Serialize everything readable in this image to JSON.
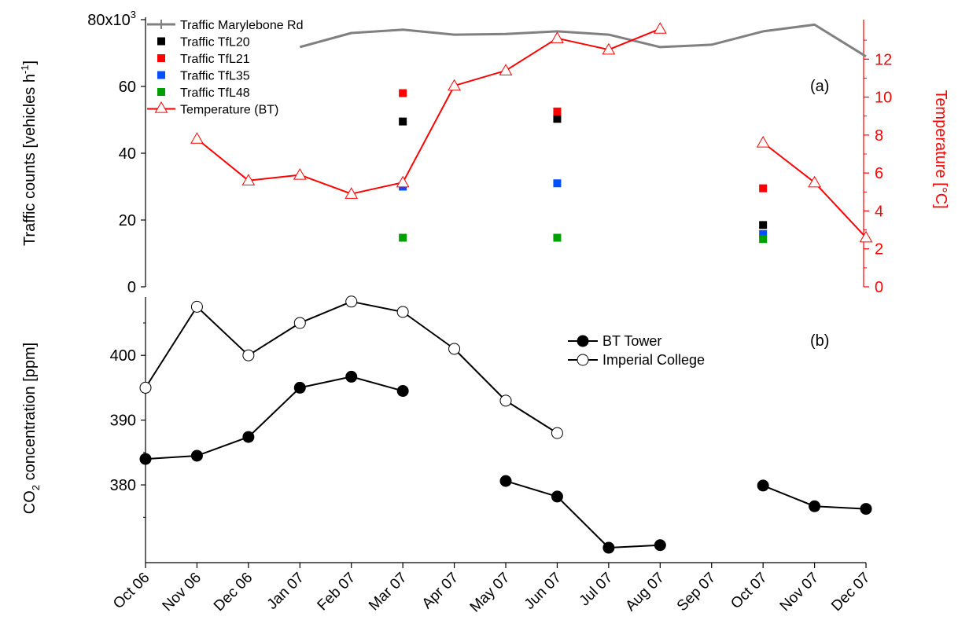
{
  "chart_data": [
    {
      "panel_label": "(a)",
      "type": "line",
      "x": [
        "Oct 06",
        "Nov 06",
        "Dec 06",
        "Jan 07",
        "Feb 07",
        "Mar 07",
        "Apr 07",
        "May 07",
        "Jun 07",
        "Jul 07",
        "Aug 07",
        "Sep 07",
        "Oct 07",
        "Nov 07",
        "Dec 07"
      ],
      "ylabel": "Traffic counts [vehicles h",
      "ylabel_sup": "-1",
      "ylabel_close": "]",
      "ylim": [
        0,
        80000
      ],
      "yticks": [
        {
          "value": 0,
          "label": "0"
        },
        {
          "value": 20000,
          "label": "20"
        },
        {
          "value": 40000,
          "label": "40"
        },
        {
          "value": 60000,
          "label": "60"
        },
        {
          "value": 80000,
          "label": "80x10",
          "sup": "3"
        }
      ],
      "y2label": "Temperature [°C]",
      "y2lim": [
        0,
        14
      ],
      "y2ticks": [
        {
          "value": 0,
          "label": "0"
        },
        {
          "value": 2,
          "label": "2"
        },
        {
          "value": 4,
          "label": "4"
        },
        {
          "value": 6,
          "label": "6"
        },
        {
          "value": 8,
          "label": "8"
        },
        {
          "value": 10,
          "label": "10"
        },
        {
          "value": 12,
          "label": "12"
        }
      ],
      "legend_position": "top-left",
      "series": [
        {
          "name": "Traffic Marylebone Rd",
          "kind": "line",
          "axis": "left",
          "color": "#808080",
          "values": [
            null,
            null,
            null,
            71800,
            76000,
            77000,
            75500,
            75700,
            76500,
            75500,
            71800,
            72500,
            76500,
            78500,
            69000
          ]
        },
        {
          "name": "Traffic TfL20",
          "kind": "markers",
          "axis": "left",
          "color": "#000000",
          "values": [
            null,
            null,
            null,
            null,
            null,
            49500,
            null,
            null,
            50300,
            null,
            null,
            null,
            18500,
            null,
            null
          ]
        },
        {
          "name": "Traffic TfL21",
          "kind": "markers",
          "axis": "left",
          "color": "#ff0000",
          "values": [
            null,
            null,
            null,
            null,
            null,
            58000,
            null,
            null,
            52500,
            null,
            null,
            null,
            29500,
            null,
            null
          ]
        },
        {
          "name": "Traffic TfL35",
          "kind": "markers",
          "axis": "left",
          "color": "#0050ff",
          "values": [
            null,
            null,
            null,
            null,
            null,
            30000,
            null,
            null,
            31000,
            null,
            null,
            null,
            15800,
            null,
            null
          ]
        },
        {
          "name": "Traffic TfL48",
          "kind": "markers",
          "axis": "left",
          "color": "#00a000",
          "values": [
            null,
            null,
            null,
            null,
            null,
            14700,
            null,
            null,
            14700,
            null,
            null,
            null,
            14300,
            null,
            null
          ]
        },
        {
          "name": "Temperature (BT)",
          "kind": "line-triangle",
          "axis": "right",
          "color": "#ff0000",
          "values": [
            null,
            7.8,
            5.6,
            5.9,
            4.9,
            5.5,
            10.6,
            11.4,
            13.1,
            12.5,
            13.6,
            null,
            7.6,
            5.5,
            2.6
          ]
        }
      ]
    },
    {
      "panel_label": "(b)",
      "type": "line",
      "x": [
        "Oct 06",
        "Nov 06",
        "Dec 06",
        "Jan 07",
        "Feb 07",
        "Mar 07",
        "Apr 07",
        "May 07",
        "Jun 07",
        "Jul 07",
        "Aug 07",
        "Sep 07",
        "Oct 07",
        "Nov 07",
        "Dec 07"
      ],
      "ylabel_pre": "CO",
      "ylabel_sub": "2",
      "ylabel_post": " concentration [ppm]",
      "ylim": [
        368,
        409
      ],
      "yticks": [
        {
          "value": 380,
          "label": "380"
        },
        {
          "value": 390,
          "label": "390"
        },
        {
          "value": 400,
          "label": "400"
        }
      ],
      "legend_position": "top-right",
      "series": [
        {
          "name": "BT Tower",
          "marker": "filled-circle",
          "color": "#000000",
          "values": [
            384.0,
            384.5,
            387.4,
            395.0,
            396.7,
            394.5,
            null,
            380.6,
            378.2,
            370.3,
            370.7,
            null,
            379.9,
            376.7,
            376.3
          ]
        },
        {
          "name": "Imperial College",
          "marker": "open-circle",
          "color": "#000000",
          "values": [
            395.0,
            407.5,
            400.0,
            405.0,
            408.3,
            406.7,
            401.0,
            393.0,
            388.0,
            null,
            null,
            null,
            null,
            null,
            null
          ]
        }
      ]
    }
  ]
}
